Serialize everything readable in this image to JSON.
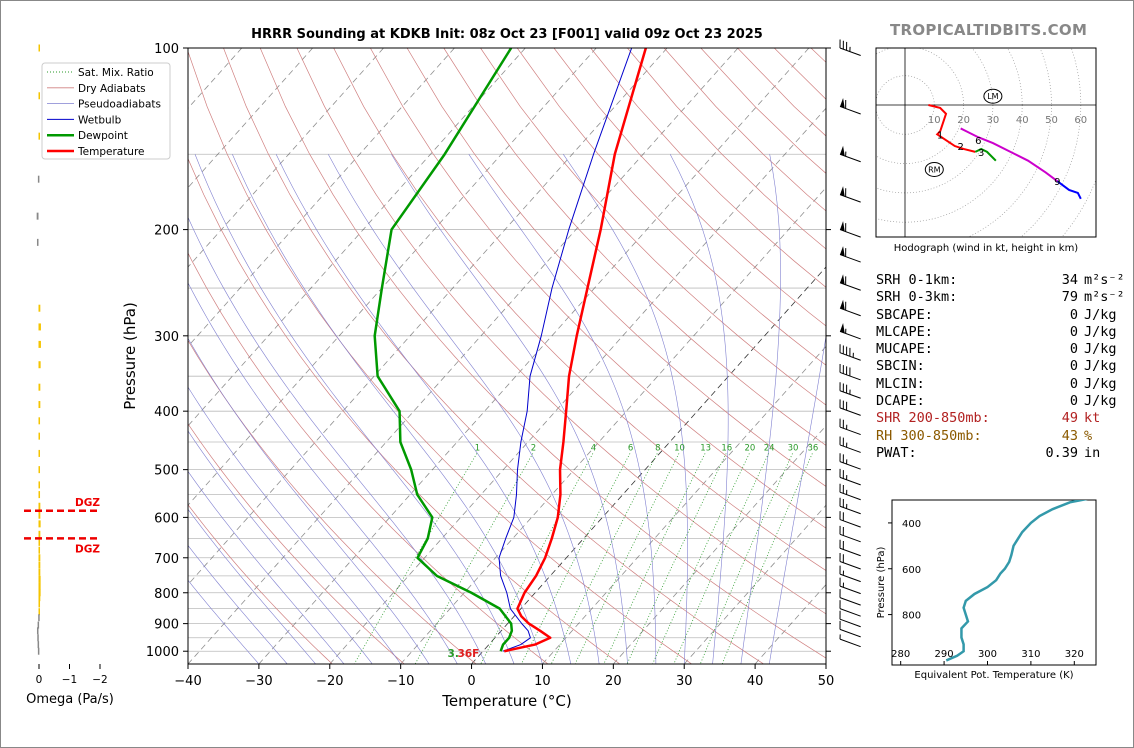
{
  "brand": "TROPICALTIDBITS.COM",
  "chart_data": [
    {
      "type": "line",
      "name": "skew-t",
      "title": "HRRR Sounding at KDKB Init: 08z Oct 23 [F001] valid 09z Oct 23 2025",
      "xlabel": "Temperature (°C)",
      "ylabel": "Pressure (hPa)",
      "xlim": [
        -40,
        50
      ],
      "ylim": [
        1050,
        100
      ],
      "y_scale": "log",
      "x_ticks": [
        "−40",
        "−30",
        "−20",
        "−10",
        "0",
        "10",
        "20",
        "30",
        "40",
        "50"
      ],
      "y_ticks": [
        "100",
        "200",
        "300",
        "400",
        "500",
        "600",
        "700",
        "800",
        "900",
        "1000"
      ],
      "legend": [
        "Sat. Mix. Ratio",
        "Dry Adiabats",
        "Pseudoadiabats",
        "Wetbulb",
        "Dewpoint",
        "Temperature"
      ],
      "mixing_ratio_labels": [
        "1",
        "2",
        "4",
        "6",
        "8",
        "10",
        "13",
        "16",
        "20",
        "24",
        "30",
        "36"
      ],
      "colors": {
        "temperature": "#ff0000",
        "dewpoint": "#009900",
        "wetbulb": "#0000cc"
      },
      "temperature": [
        [
          1000,
          3.0
        ],
        [
          975,
          6.5
        ],
        [
          950,
          7.8
        ],
        [
          925,
          5.5
        ],
        [
          900,
          3.0
        ],
        [
          875,
          1.0
        ],
        [
          850,
          -0.5
        ],
        [
          800,
          -1.5
        ],
        [
          750,
          -2.0
        ],
        [
          700,
          -3.0
        ],
        [
          650,
          -4.5
        ],
        [
          600,
          -6.3
        ],
        [
          550,
          -8.8
        ],
        [
          500,
          -12.0
        ],
        [
          450,
          -15.0
        ],
        [
          400,
          -18.5
        ],
        [
          350,
          -22.5
        ],
        [
          300,
          -26.5
        ],
        [
          250,
          -31.0
        ],
        [
          200,
          -36.5
        ],
        [
          150,
          -44.0
        ],
        [
          100,
          -53.0
        ]
      ],
      "dewpoint": [
        [
          1000,
          2.5
        ],
        [
          975,
          2.0
        ],
        [
          950,
          2.0
        ],
        [
          925,
          1.5
        ],
        [
          900,
          0.5
        ],
        [
          850,
          -3.0
        ],
        [
          800,
          -9.0
        ],
        [
          750,
          -16.0
        ],
        [
          700,
          -21.0
        ],
        [
          650,
          -22.0
        ],
        [
          600,
          -24.0
        ],
        [
          550,
          -29.0
        ],
        [
          500,
          -33.0
        ],
        [
          450,
          -38.0
        ],
        [
          400,
          -42.0
        ],
        [
          350,
          -49.5
        ],
        [
          300,
          -55.0
        ],
        [
          250,
          -60.0
        ],
        [
          200,
          -66.0
        ],
        [
          150,
          -68.0
        ],
        [
          100,
          -72.0
        ]
      ],
      "wetbulb": [
        [
          1000,
          2.8
        ],
        [
          975,
          4.5
        ],
        [
          950,
          5.0
        ],
        [
          925,
          3.8
        ],
        [
          900,
          2.0
        ],
        [
          850,
          -1.5
        ],
        [
          800,
          -4.0
        ],
        [
          750,
          -7.0
        ],
        [
          700,
          -9.5
        ],
        [
          650,
          -11.0
        ],
        [
          600,
          -12.5
        ],
        [
          550,
          -15.0
        ],
        [
          500,
          -18.0
        ],
        [
          450,
          -21.0
        ],
        [
          400,
          -24.0
        ],
        [
          350,
          -28.0
        ],
        [
          300,
          -31.5
        ],
        [
          250,
          -36.0
        ],
        [
          200,
          -41.0
        ],
        [
          150,
          -47.0
        ],
        [
          100,
          -55.0
        ]
      ],
      "surface_label": "3.36F"
    },
    {
      "type": "bar",
      "name": "omega",
      "xlabel": "Omega (Pa/s)",
      "x_ticks": [
        "0",
        "−1",
        "−2"
      ],
      "xlim": [
        0.3,
        -2.7
      ],
      "dgz_label": "DGZ",
      "dgz_pressures": [
        585,
        650
      ],
      "values": [
        [
          100,
          -0.02
        ],
        [
          120,
          -0.04
        ],
        [
          140,
          -0.03
        ],
        [
          165,
          0.02
        ],
        [
          190,
          0.06
        ],
        [
          210,
          0.05
        ],
        [
          270,
          -0.06
        ],
        [
          290,
          -0.08
        ],
        [
          310,
          -0.08
        ],
        [
          335,
          -0.07
        ],
        [
          365,
          -0.06
        ],
        [
          390,
          -0.06
        ],
        [
          415,
          -0.05
        ],
        [
          440,
          -0.02
        ],
        [
          470,
          -0.01
        ],
        [
          500,
          -0.02
        ],
        [
          530,
          -0.04
        ],
        [
          550,
          -0.05
        ],
        [
          575,
          -0.06
        ],
        [
          595,
          -0.06
        ],
        [
          615,
          -0.07
        ],
        [
          640,
          -0.06
        ],
        [
          660,
          -0.05
        ],
        [
          680,
          -0.05
        ],
        [
          700,
          -0.06
        ],
        [
          720,
          -0.06
        ],
        [
          740,
          -0.06
        ],
        [
          760,
          -0.07
        ],
        [
          780,
          -0.07
        ],
        [
          800,
          -0.07
        ],
        [
          815,
          -0.06
        ],
        [
          835,
          -0.05
        ],
        [
          860,
          -0.03
        ],
        [
          880,
          0.01
        ],
        [
          905,
          0.03
        ],
        [
          925,
          0.05
        ],
        [
          950,
          0.04
        ],
        [
          975,
          0.03
        ],
        [
          1000,
          0.02
        ]
      ]
    },
    {
      "type": "line",
      "name": "hodograph",
      "xlabel": "Hodograph (wind in kt, height in km)",
      "ring_labels": [
        "10",
        "20",
        "30",
        "40",
        "50",
        "60"
      ],
      "storm_motion": {
        "LM": [
          30,
          3
        ],
        "RM": [
          10,
          -22
        ]
      },
      "height_labels": [
        [
          "1",
          12,
          -10
        ],
        [
          "2",
          19,
          -14
        ],
        [
          "3",
          26,
          -16
        ],
        [
          "6",
          25,
          -12
        ],
        [
          "9",
          52,
          -26
        ]
      ],
      "segments": [
        {
          "color": "#ff0000",
          "points": [
            [
              8,
              0
            ],
            [
              12,
              -1
            ],
            [
              14,
              -3
            ],
            [
              13,
              -6
            ],
            [
              12,
              -9
            ],
            [
              11,
              -10
            ],
            [
              14,
              -12
            ],
            [
              17,
              -14
            ],
            [
              20,
              -15
            ],
            [
              24,
              -16
            ]
          ]
        },
        {
          "color": "#009900",
          "points": [
            [
              24,
              -16
            ],
            [
              26,
              -15
            ],
            [
              28,
              -16
            ],
            [
              30,
              -18
            ],
            [
              31,
              -19
            ]
          ]
        },
        {
          "color": "#cc00cc",
          "points": [
            [
              19,
              -8
            ],
            [
              21,
              -9
            ],
            [
              25,
              -11
            ],
            [
              30,
              -13
            ],
            [
              36,
              -16
            ],
            [
              42,
              -19
            ],
            [
              48,
              -23
            ],
            [
              52,
              -26
            ]
          ]
        },
        {
          "color": "#0000ff",
          "points": [
            [
              52,
              -26
            ],
            [
              56,
              -29
            ],
            [
              59,
              -30
            ],
            [
              60,
              -32
            ]
          ]
        }
      ]
    },
    {
      "type": "line",
      "name": "theta-e",
      "xlabel": "Equivalent Pot. Temperature (K)",
      "ylabel": "Pressure (hPa)",
      "x_ticks": [
        "280",
        "290",
        "300",
        "310",
        "320"
      ],
      "y_ticks": [
        "400",
        "600",
        "800"
      ],
      "xlim": [
        278,
        325
      ],
      "ylim": [
        1020,
        300
      ],
      "color": "#3399aa",
      "points": [
        [
          1000,
          290.5
        ],
        [
          980,
          293
        ],
        [
          960,
          294.5
        ],
        [
          930,
          294.5
        ],
        [
          900,
          294
        ],
        [
          860,
          294
        ],
        [
          830,
          295.5
        ],
        [
          800,
          295
        ],
        [
          770,
          294.5
        ],
        [
          740,
          295
        ],
        [
          710,
          297
        ],
        [
          680,
          300
        ],
        [
          650,
          302
        ],
        [
          620,
          303
        ],
        [
          600,
          304
        ],
        [
          570,
          305
        ],
        [
          540,
          305.5
        ],
        [
          500,
          306
        ],
        [
          470,
          307
        ],
        [
          440,
          308
        ],
        [
          400,
          310
        ],
        [
          370,
          312
        ],
        [
          340,
          315
        ],
        [
          310,
          319
        ],
        [
          295,
          323
        ]
      ]
    }
  ],
  "stats": [
    {
      "label": "SRH 0-1km:",
      "value": "34",
      "unit": "m²s⁻²",
      "color": "#000000"
    },
    {
      "label": "SRH 0-3km:",
      "value": "79",
      "unit": "m²s⁻²",
      "color": "#000000"
    },
    {
      "label": "SBCAPE:",
      "value": "0",
      "unit": "J/kg",
      "color": "#000000"
    },
    {
      "label": "MLCAPE:",
      "value": "0",
      "unit": "J/kg",
      "color": "#000000"
    },
    {
      "label": "MUCAPE:",
      "value": "0",
      "unit": "J/kg",
      "color": "#000000"
    },
    {
      "label": "SBCIN:",
      "value": "0",
      "unit": "J/kg",
      "color": "#000000"
    },
    {
      "label": "MLCIN:",
      "value": "0",
      "unit": "J/kg",
      "color": "#000000"
    },
    {
      "label": "DCAPE:",
      "value": "0",
      "unit": "J/kg",
      "color": "#000000"
    },
    {
      "label": "SHR 200-850mb:",
      "value": "49",
      "unit": "kt",
      "color": "#b22222"
    },
    {
      "label": "RH 300-850mb:",
      "value": "43",
      "unit": "%",
      "color": "#8b5a00"
    },
    {
      "label": "PWAT:",
      "value": "0.39",
      "unit": "in",
      "color": "#000000"
    }
  ],
  "wind_barbs": [
    {
      "p": 100,
      "speed": 35
    },
    {
      "p": 125,
      "speed": 60
    },
    {
      "p": 150,
      "speed": 55
    },
    {
      "p": 175,
      "speed": 60
    },
    {
      "p": 200,
      "speed": 60
    },
    {
      "p": 220,
      "speed": 60
    },
    {
      "p": 245,
      "speed": 60
    },
    {
      "p": 270,
      "speed": 60
    },
    {
      "p": 295,
      "speed": 55
    },
    {
      "p": 320,
      "speed": 45
    },
    {
      "p": 345,
      "speed": 40
    },
    {
      "p": 370,
      "speed": 35
    },
    {
      "p": 395,
      "speed": 30
    },
    {
      "p": 425,
      "speed": 25
    },
    {
      "p": 455,
      "speed": 25
    },
    {
      "p": 485,
      "speed": 25
    },
    {
      "p": 515,
      "speed": 25
    },
    {
      "p": 545,
      "speed": 25
    },
    {
      "p": 575,
      "speed": 25
    },
    {
      "p": 605,
      "speed": 20
    },
    {
      "p": 640,
      "speed": 20
    },
    {
      "p": 675,
      "speed": 20
    },
    {
      "p": 710,
      "speed": 20
    },
    {
      "p": 745,
      "speed": 15
    },
    {
      "p": 780,
      "speed": 15
    },
    {
      "p": 815,
      "speed": 10
    },
    {
      "p": 850,
      "speed": 10
    },
    {
      "p": 885,
      "speed": 10
    },
    {
      "p": 920,
      "speed": 10
    },
    {
      "p": 955,
      "speed": 5
    }
  ]
}
